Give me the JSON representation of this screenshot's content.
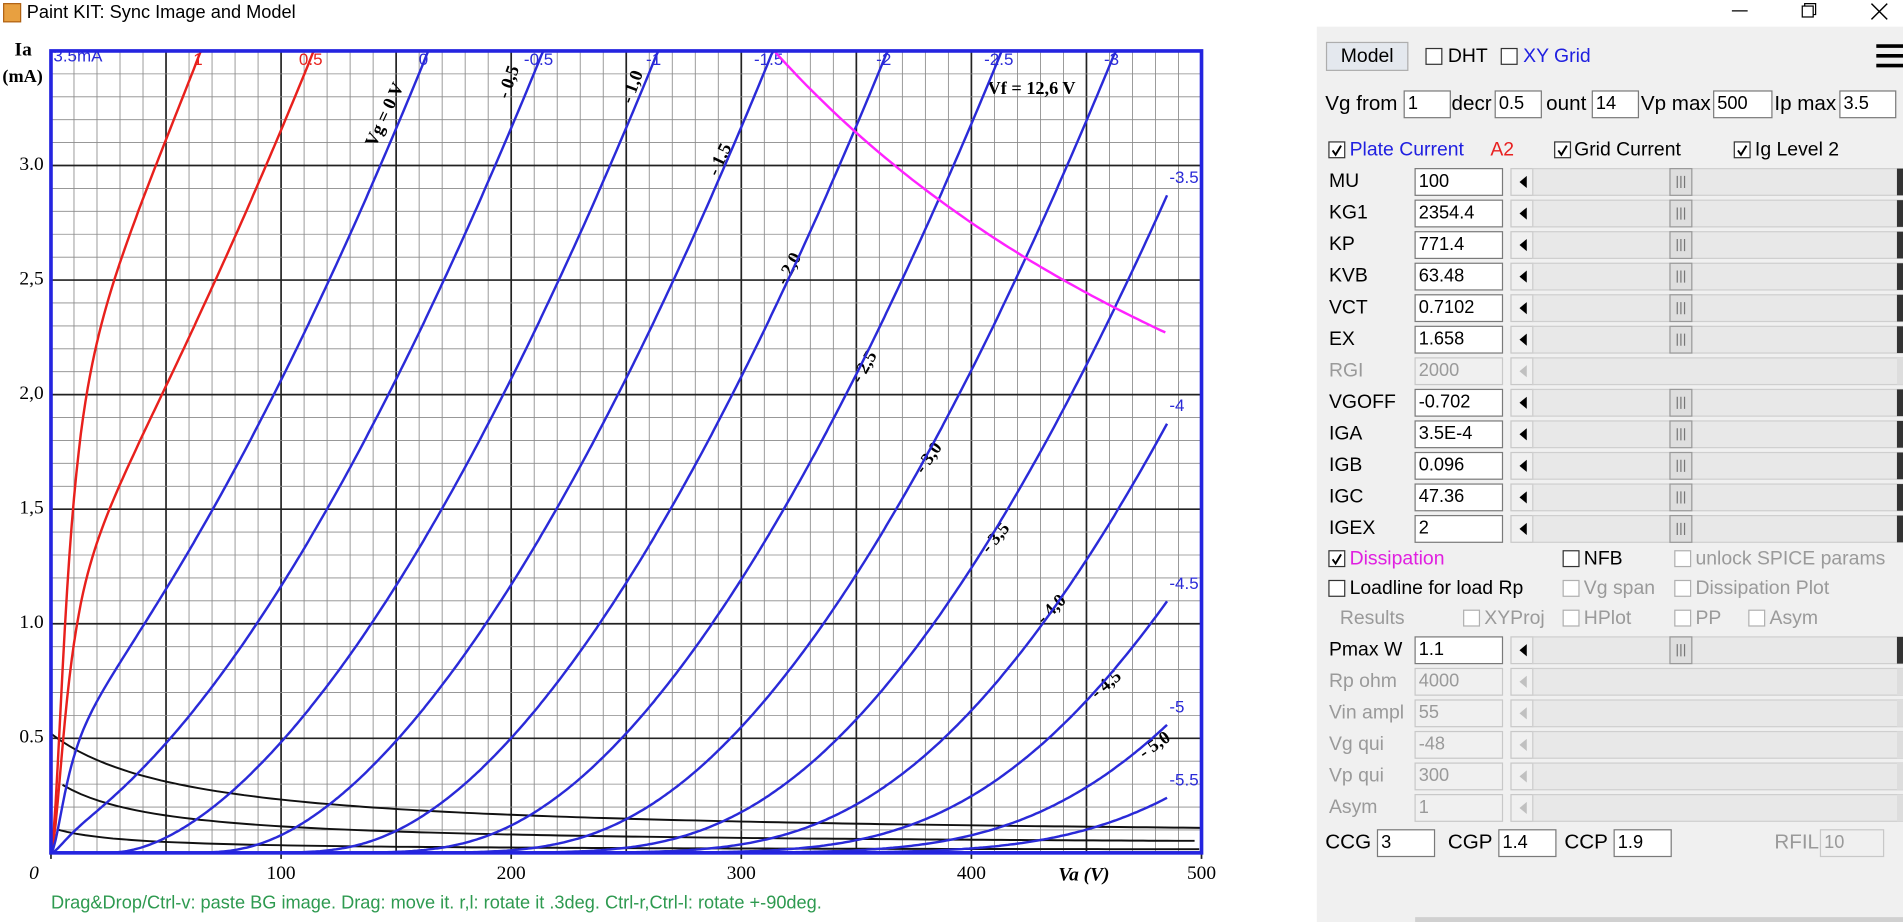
{
  "window": {
    "title": "Paint KIT: Sync Image and Model"
  },
  "plot": {
    "y_label": "Ia",
    "y_unit": "(mA)",
    "x_label": "Va (V)",
    "ip_label": "3.5mA",
    "xticks": [
      0,
      100,
      200,
      300,
      400,
      500
    ],
    "yticks": [
      0.5,
      {
        "value": 1.0,
        "label": "1.0"
      },
      {
        "value": 1.5,
        "label": "1,5"
      },
      {
        "value": 2.0,
        "label": "2,0"
      },
      {
        "value": 2.5,
        "label": "2,5"
      },
      {
        "value": 3.0,
        "label": "3.0"
      }
    ],
    "curve_labels": [
      "1",
      "0.5",
      "0",
      "-0.5",
      "-1",
      "-1.5",
      "-2",
      "-2.5",
      "-3",
      "-3.5",
      "-4",
      "-4.5",
      "-5",
      "-5.5"
    ],
    "positive_color": "#e8201c",
    "model_color": "#2a2ad8",
    "dissipation_color": "#ff22ff",
    "scan_labels": [
      "Vg = 0 V",
      "- 0,5",
      "- 1,0",
      "- 1,5",
      "- 2,0",
      "- 2,5",
      "- 3,0",
      "- 3,5",
      "- 4,0",
      "- 4,5",
      "- 5,0",
      "Vf = 12,6 V"
    ],
    "hint": "Drag&Drop/Ctrl-v: paste BG image. Drag: move it. r,l: rotate it .3deg. Ctrl-r,Ctrl-l: rotate +-90deg."
  },
  "panel": {
    "model_button": "Model",
    "top_checks": [
      {
        "label": "DHT",
        "checked": false,
        "color": "#000000"
      },
      {
        "label": "XY Grid",
        "checked": false,
        "color": "#2020e0"
      }
    ],
    "vg_row": [
      {
        "label": "Vg from",
        "value": "1"
      },
      {
        "label": "decr",
        "value": "0.5"
      },
      {
        "label": "ount",
        "value": "14"
      },
      {
        "label": "Vp max",
        "value": "500"
      },
      {
        "label": "Ip max",
        "value": "3.5"
      }
    ],
    "plate_current": {
      "label": "Plate Current",
      "checked": true,
      "color": "#2020e0"
    },
    "a2": {
      "label": "A2",
      "color": "#e82020"
    },
    "grid_current": {
      "label": "Grid Current",
      "checked": true
    },
    "ig_level": {
      "label": "Ig Level 2",
      "checked": true
    },
    "params": [
      {
        "name": "MU",
        "value": "100",
        "enabled": true
      },
      {
        "name": "KG1",
        "value": "2354.4",
        "enabled": true
      },
      {
        "name": "KP",
        "value": "771.4",
        "enabled": true
      },
      {
        "name": "KVB",
        "value": "63.48",
        "enabled": true
      },
      {
        "name": "VCT",
        "value": "0.7102",
        "enabled": true
      },
      {
        "name": "EX",
        "value": "1.658",
        "enabled": true
      },
      {
        "name": "RGI",
        "value": "2000",
        "enabled": false
      },
      {
        "name": "VGOFF",
        "value": "-0.702",
        "enabled": true
      },
      {
        "name": "IGA",
        "value": "3.5E-4",
        "enabled": true
      },
      {
        "name": "IGB",
        "value": "0.096",
        "enabled": true
      },
      {
        "name": "IGC",
        "value": "47.36",
        "enabled": true
      },
      {
        "name": "IGEX",
        "value": "2",
        "enabled": true
      }
    ],
    "options": [
      [
        {
          "label": "Dissipation",
          "checkbox": true,
          "checked": true,
          "enabled": true,
          "color": "#e020e0"
        },
        {
          "label": "NFB",
          "checkbox": true,
          "checked": false,
          "enabled": true
        },
        {
          "label": "unlock SPICE params",
          "checkbox": true,
          "checked": false,
          "enabled": false
        }
      ],
      [
        {
          "label": "Loadline for load Rp",
          "checkbox": true,
          "checked": false,
          "enabled": true
        },
        {
          "label": "Vg span",
          "checkbox": true,
          "checked": false,
          "enabled": false
        },
        {
          "label": "Dissipation Plot",
          "checkbox": true,
          "checked": false,
          "enabled": false
        }
      ],
      [
        {
          "label": "Results",
          "checkbox": false,
          "checked": false,
          "enabled": false
        },
        {
          "label": "XYProj",
          "checkbox": true,
          "checked": false,
          "enabled": false
        },
        {
          "label": "HPlot",
          "checkbox": true,
          "checked": false,
          "enabled": false
        },
        {
          "label": "PP",
          "checkbox": true,
          "checked": false,
          "enabled": false
        },
        {
          "label": "Asym",
          "checkbox": true,
          "checked": false,
          "enabled": false
        }
      ]
    ],
    "load_params": [
      {
        "name": "Pmax W",
        "value": "1.1",
        "enabled": true
      },
      {
        "name": "Rp ohm",
        "value": "4000",
        "enabled": false
      },
      {
        "name": "Vin ampl",
        "value": "55",
        "enabled": false
      },
      {
        "name": "Vg qui",
        "value": "-48",
        "enabled": false
      },
      {
        "name": "Vp qui",
        "value": "300",
        "enabled": false
      },
      {
        "name": "Asym",
        "value": "1",
        "enabled": false
      }
    ],
    "bottom_fields": [
      {
        "label": "CCG",
        "value": "3",
        "enabled": true
      },
      {
        "label": "CGP",
        "value": "1.4",
        "enabled": true
      },
      {
        "label": "CCP",
        "value": "1.9",
        "enabled": true
      },
      {
        "label": "RFIL",
        "value": "10",
        "enabled": false
      }
    ]
  }
}
